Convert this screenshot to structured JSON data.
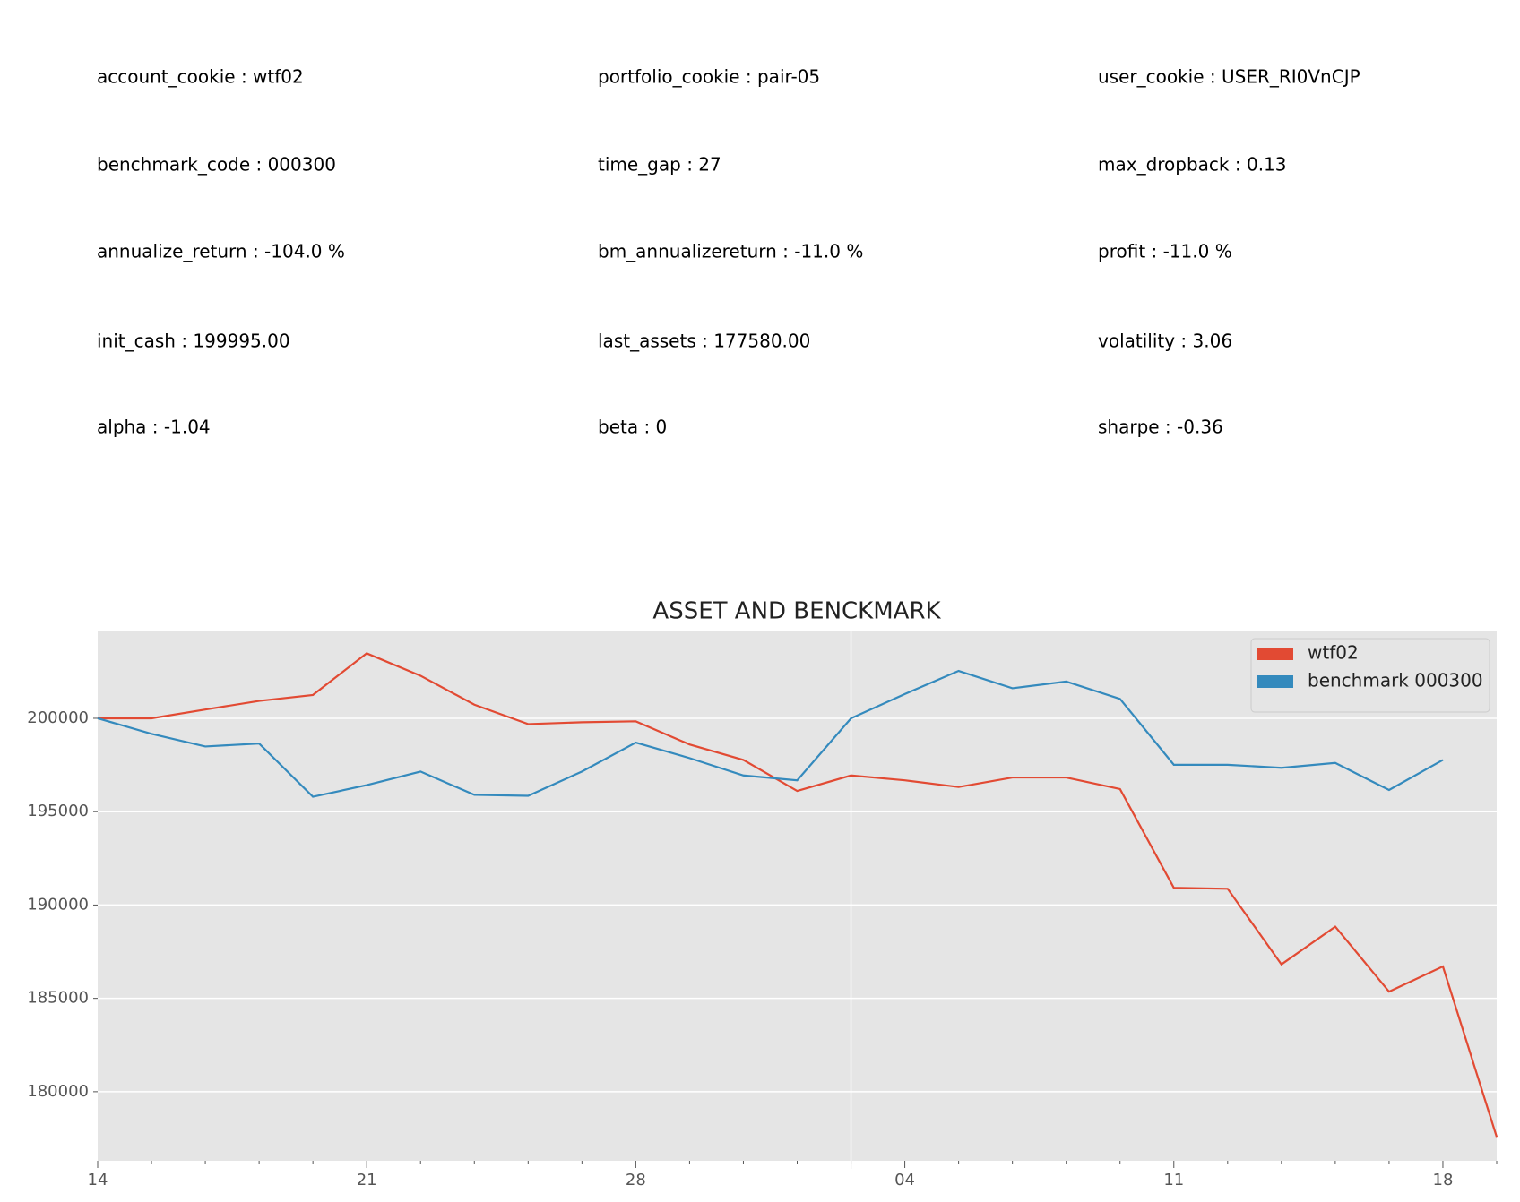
{
  "stats": [
    "account_cookie : wtf02",
    "portfolio_cookie : pair-05",
    "user_cookie : USER_RI0VnCJP",
    "benchmark_code : 000300",
    "time_gap : 27",
    "max_dropback : 0.13",
    "annualize_return : -104.0 %",
    "bm_annualizereturn : -11.0 %",
    "profit : -11.0 %",
    "init_cash : 199995.00",
    "last_assets : 177580.00",
    "volatility : 3.06",
    "alpha : -1.04",
    "beta : 0",
    "sharpe : -0.36"
  ],
  "chart_data": {
    "type": "line",
    "title": "ASSET AND BENCKMARK",
    "categories": [
      "14",
      null,
      null,
      null,
      null,
      "21",
      null,
      null,
      null,
      null,
      "28",
      null,
      null,
      null,
      null,
      "04",
      null,
      null,
      null,
      null,
      "11",
      null,
      null,
      null,
      null,
      "18",
      null
    ],
    "series": [
      {
        "name": "wtf02",
        "color": "#e24a33",
        "values": [
          200000,
          200000,
          200470,
          200930,
          201250,
          203480,
          202280,
          200730,
          199690,
          199790,
          199840,
          198600,
          197770,
          196110,
          196940,
          196680,
          196320,
          196830,
          196830,
          196210,
          190920,
          190870,
          186820,
          188840,
          185360,
          186710,
          177580
        ]
      },
      {
        "name": "benchmark 000300",
        "color": "#348abd",
        "values": [
          200000,
          199170,
          198490,
          198650,
          195800,
          196420,
          197150,
          195900,
          195850,
          197150,
          198700,
          197870,
          196940,
          196680,
          200000,
          201300,
          202540,
          201610,
          201970,
          201040,
          197510,
          197510,
          197350,
          197610,
          196160,
          197770,
          null
        ]
      }
    ],
    "ylim": [
      176300,
      204700
    ],
    "yticks": [
      180000,
      185000,
      190000,
      195000,
      200000
    ],
    "x_major_ticks": [
      14
    ],
    "grid": true,
    "legend": "upper right"
  }
}
